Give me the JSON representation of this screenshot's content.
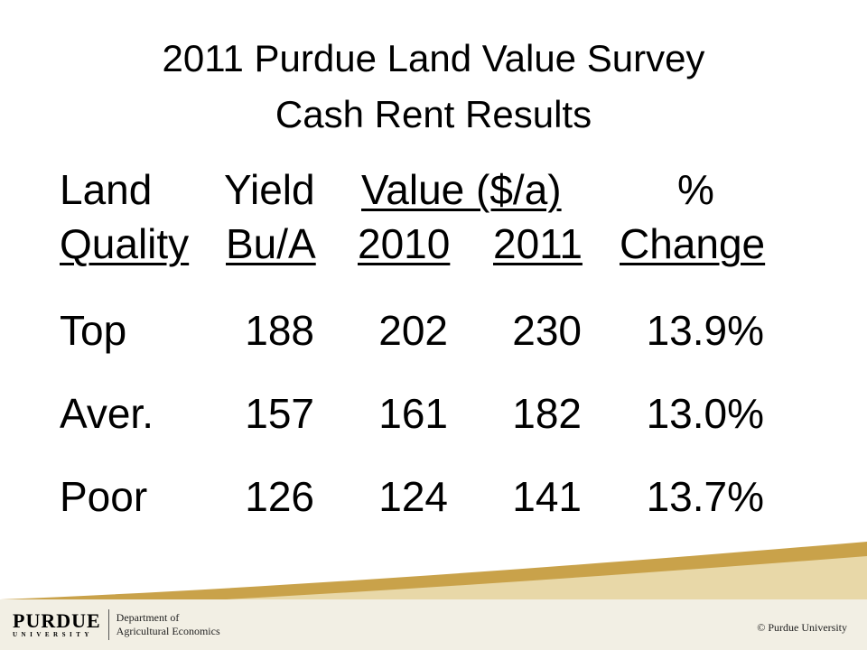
{
  "title": {
    "line1": "2011 Purdue Land Value Survey",
    "line2": "Cash Rent Results"
  },
  "table": {
    "headers": {
      "land": "Land",
      "quality": "Quality",
      "yield": "Yield",
      "yield_unit": "Bu/A",
      "value": "Value ($/a)",
      "year1": "2010",
      "year2": "2011",
      "pct": "%",
      "change": "Change"
    },
    "rows": [
      {
        "label": "Top",
        "yield": "188",
        "v2010": "202",
        "v2011": "230",
        "change": "13.9%"
      },
      {
        "label": "Aver.",
        "yield": "157",
        "v2010": "161",
        "v2011": "182",
        "change": "13.0%"
      },
      {
        "label": "Poor",
        "yield": "126",
        "v2010": "124",
        "v2011": "141",
        "change": "13.7%"
      }
    ]
  },
  "footer": {
    "logo_word": "PURDUE",
    "logo_sub": "UNIVERSITY",
    "dept_line1": "Department of",
    "dept_line2": "Agricultural Economics",
    "copyright": "© Purdue University"
  },
  "colors": {
    "wave_gold": "#c9a24a",
    "wave_light": "#e8d8a8",
    "footer_bg": "#f2efe4"
  }
}
